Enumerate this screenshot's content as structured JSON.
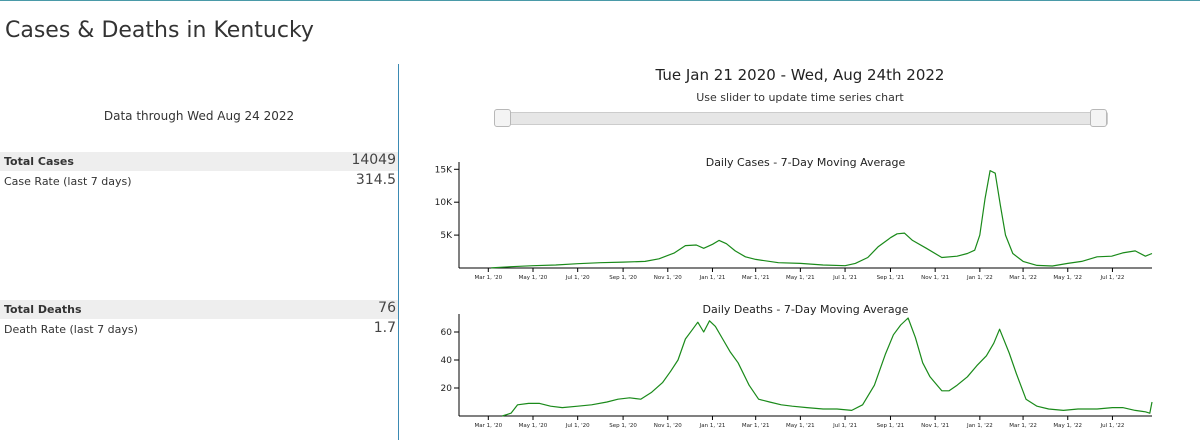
{
  "page": {
    "title": "Cases & Deaths in Kentucky"
  },
  "summary": {
    "data_through": "Data through Wed Aug 24 2022",
    "cases": {
      "total_label": "Total Cases",
      "total_value": "14049",
      "rate_label": "Case Rate (last 7 days)",
      "rate_value": "314.5"
    },
    "deaths": {
      "total_label": "Total Deaths",
      "total_value": "76",
      "rate_label": "Death Rate (last 7 days)",
      "rate_value": "1.7"
    }
  },
  "controls": {
    "range_title": "Tue Jan 21 2020 - Wed, Aug 24th 2022",
    "slider_hint": "Use slider to update time series chart",
    "slider_range": [
      0,
      1
    ]
  },
  "colors": {
    "line": "#1a8a1a",
    "divider": "#3b8ab3"
  },
  "chart_data": [
    {
      "type": "line",
      "title": "Daily Cases - 7-Day Moving Average",
      "xlabel": "",
      "ylabel": "",
      "xlim": [
        "2020-01-21",
        "2022-08-24"
      ],
      "ylim": [
        0,
        15500
      ],
      "yticks": [
        {
          "v": 5000,
          "label": "5K"
        },
        {
          "v": 10000,
          "label": "10K"
        },
        {
          "v": 15000,
          "label": "15K"
        }
      ],
      "xticks": [
        "2020-03-01",
        "2020-05-01",
        "2020-07-01",
        "2020-09-01",
        "2020-11-01",
        "2021-01-01",
        "2021-03-01",
        "2021-05-01",
        "2021-07-01",
        "2021-09-01",
        "2021-11-01",
        "2022-01-01",
        "2022-03-01",
        "2022-05-01",
        "2022-07-01"
      ],
      "xtick_labels": [
        "Mar 1, '20",
        "May 1, '20",
        "Jul 1, '20",
        "Sep 1, '20",
        "Nov 1, '20",
        "Jan 1, '21",
        "Mar 1, '21",
        "May 1, '21",
        "Jul 1, '21",
        "Sep 1, '21",
        "Nov 1, '21",
        "Jan 1, '22",
        "Mar 1, '22",
        "May 1, '22",
        "Jul 1, '22"
      ],
      "grid": false,
      "series": [
        {
          "x": [
            "2020-03-05",
            "2020-04-01",
            "2020-05-01",
            "2020-06-01",
            "2020-07-01",
            "2020-08-01",
            "2020-09-01",
            "2020-10-01",
            "2020-10-20",
            "2020-11-10",
            "2020-11-25",
            "2020-12-10",
            "2020-12-20",
            "2021-01-01",
            "2021-01-10",
            "2021-01-20",
            "2021-02-01",
            "2021-02-15",
            "2021-03-01",
            "2021-04-01",
            "2021-05-01",
            "2021-06-01",
            "2021-07-01",
            "2021-07-15",
            "2021-08-01",
            "2021-08-15",
            "2021-09-01",
            "2021-09-10",
            "2021-09-20",
            "2021-10-01",
            "2021-10-20",
            "2021-11-10",
            "2021-12-01",
            "2021-12-15",
            "2021-12-25",
            "2022-01-01",
            "2022-01-08",
            "2022-01-15",
            "2022-01-22",
            "2022-01-29",
            "2022-02-05",
            "2022-02-15",
            "2022-03-01",
            "2022-03-20",
            "2022-04-10",
            "2022-05-01",
            "2022-05-20",
            "2022-06-10",
            "2022-06-30",
            "2022-07-15",
            "2022-08-01",
            "2022-08-15",
            "2022-08-24"
          ],
          "y": [
            20,
            200,
            350,
            450,
            650,
            800,
            900,
            1000,
            1400,
            2300,
            3400,
            3500,
            3000,
            3600,
            4200,
            3700,
            2600,
            1700,
            1300,
            800,
            700,
            450,
            350,
            700,
            1600,
            3200,
            4600,
            5200,
            5300,
            4200,
            3000,
            1600,
            1800,
            2200,
            2700,
            5000,
            10500,
            14800,
            14400,
            9500,
            5000,
            2200,
            1000,
            400,
            300,
            700,
            1000,
            1700,
            1800,
            2300,
            2600,
            1800,
            2200
          ]
        }
      ]
    },
    {
      "type": "line",
      "title": "Daily Deaths - 7-Day Moving Average",
      "xlabel": "",
      "ylabel": "",
      "xlim": [
        "2020-01-21",
        "2022-08-24"
      ],
      "ylim": [
        0,
        70
      ],
      "yticks": [
        {
          "v": 20,
          "label": "20"
        },
        {
          "v": 40,
          "label": "40"
        },
        {
          "v": 60,
          "label": "60"
        }
      ],
      "xticks": [
        "2020-03-01",
        "2020-05-01",
        "2020-07-01",
        "2020-09-01",
        "2020-11-01",
        "2021-01-01",
        "2021-03-01",
        "2021-05-01",
        "2021-07-01",
        "2021-09-01",
        "2021-11-01",
        "2022-01-01",
        "2022-03-01",
        "2022-05-01",
        "2022-07-01"
      ],
      "xtick_labels": [
        "Mar 1, '20",
        "May 1, '20",
        "Jul 1, '20",
        "Sep 1, '20",
        "Nov 1, '20",
        "Jan 1, '21",
        "Mar 1, '21",
        "May 1, '21",
        "Jul 1, '21",
        "Sep 1, '21",
        "Nov 1, '21",
        "Jan 1, '22",
        "Mar 1, '22",
        "May 1, '22",
        "Jul 1, '22"
      ],
      "grid": false,
      "series": [
        {
          "x": [
            "2020-03-20",
            "2020-04-01",
            "2020-04-10",
            "2020-04-25",
            "2020-05-10",
            "2020-05-25",
            "2020-06-10",
            "2020-07-01",
            "2020-07-20",
            "2020-08-10",
            "2020-08-25",
            "2020-09-10",
            "2020-09-25",
            "2020-10-10",
            "2020-10-25",
            "2020-11-05",
            "2020-11-15",
            "2020-11-25",
            "2020-12-05",
            "2020-12-12",
            "2020-12-20",
            "2020-12-28",
            "2021-01-05",
            "2021-01-15",
            "2021-01-25",
            "2021-02-05",
            "2021-02-20",
            "2021-03-05",
            "2021-03-20",
            "2021-04-05",
            "2021-04-20",
            "2021-05-10",
            "2021-06-01",
            "2021-06-20",
            "2021-07-10",
            "2021-07-25",
            "2021-08-10",
            "2021-08-25",
            "2021-09-05",
            "2021-09-15",
            "2021-09-25",
            "2021-10-05",
            "2021-10-15",
            "2021-10-25",
            "2021-11-10",
            "2021-11-20",
            "2021-12-01",
            "2021-12-15",
            "2021-12-28",
            "2022-01-10",
            "2022-01-20",
            "2022-01-28",
            "2022-02-10",
            "2022-02-20",
            "2022-03-05",
            "2022-03-20",
            "2022-04-05",
            "2022-04-25",
            "2022-05-15",
            "2022-06-10",
            "2022-07-01",
            "2022-07-15",
            "2022-08-01",
            "2022-08-15",
            "2022-08-21",
            "2022-08-24"
          ],
          "y": [
            0,
            2,
            8,
            9,
            9,
            7,
            6,
            7,
            8,
            10,
            12,
            13,
            12,
            17,
            24,
            32,
            40,
            55,
            62,
            67,
            60,
            68,
            64,
            55,
            46,
            38,
            22,
            12,
            10,
            8,
            7,
            6,
            5,
            5,
            4,
            8,
            22,
            44,
            58,
            65,
            70,
            56,
            38,
            28,
            18,
            18,
            22,
            28,
            36,
            43,
            52,
            62,
            45,
            30,
            12,
            7,
            5,
            4,
            5,
            5,
            6,
            6,
            4,
            3,
            2,
            10
          ]
        }
      ]
    }
  ]
}
